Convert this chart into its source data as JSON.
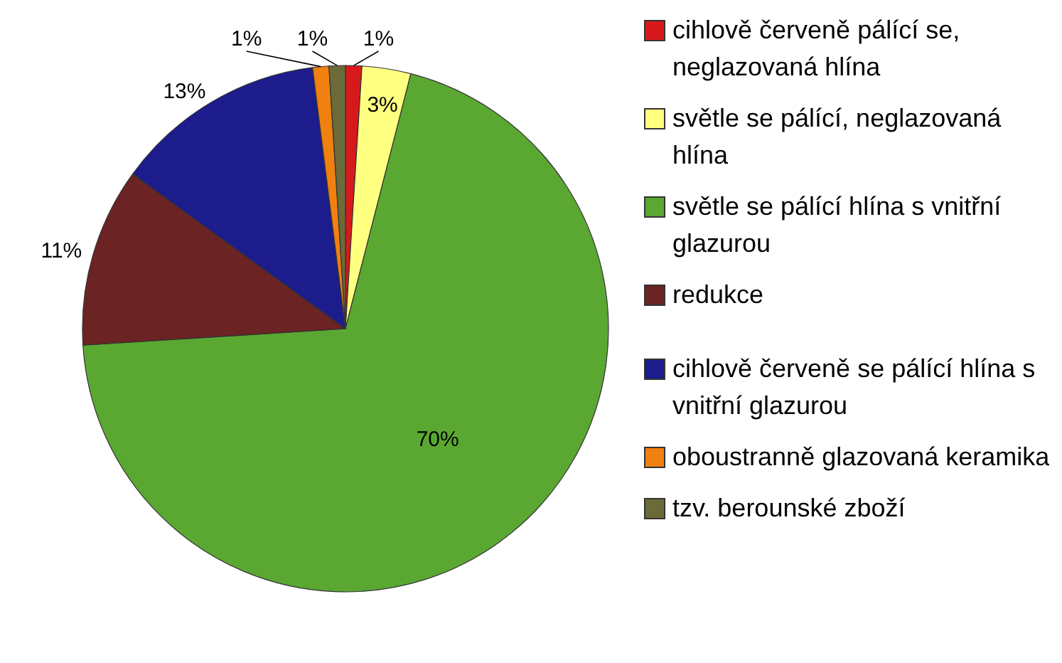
{
  "chart_data": {
    "type": "pie",
    "categories": [
      "cihlově červeně pálící se, neglazovaná hlína",
      "světle se pálící, neglazovaná hlína",
      "světle se pálící hlína s vnitřní glazurou",
      "redukce",
      "cihlově červeně se pálící hlína s vnitřní glazurou",
      "oboustranně glazovaná keramika",
      "tzv. berounské zboží"
    ],
    "values": [
      1,
      3,
      70,
      11,
      13,
      1,
      1
    ],
    "value_labels": [
      "1%",
      "3%",
      "70%",
      "11%",
      "13%",
      "1%",
      "1%"
    ],
    "colors": [
      "#d7191c",
      "#ffff80",
      "#5aa832",
      "#6b2323",
      "#1c1c8c",
      "#f08010",
      "#6b6b3a"
    ],
    "legend": "right"
  }
}
